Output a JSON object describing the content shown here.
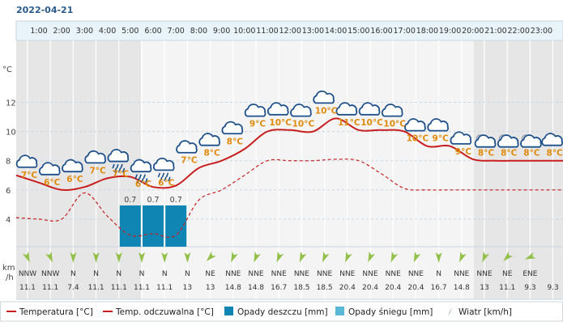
{
  "date_label": "2022-04-21",
  "y_axis_unit": "°C",
  "wind_axis_unit_line1": "km",
  "wind_axis_unit_line2": "/h",
  "legend": [
    {
      "label": "Temperatura [°C]",
      "kind": "line",
      "color": "#c81e1e"
    },
    {
      "label": "Temp. odczuwalna [°C]",
      "kind": "line",
      "color": "#c81e1e"
    },
    {
      "label": "Opady deszczu [mm]",
      "kind": "box",
      "color": "#0f85b4"
    },
    {
      "label": "Opady śniegu [mm]",
      "kind": "box",
      "color": "#58b8d6"
    },
    {
      "label": "Wiatr [km/h]",
      "kind": "arrow",
      "color": "#2a4a7a"
    }
  ],
  "colors": {
    "temperature": "#c81e1e",
    "feels_like": "#c81e1e",
    "rain": "#0f85b4",
    "snow": "#58b8d6",
    "temp_label": "#e08a0c",
    "night_band": "#e6e6e6",
    "day_band": "#f4f4f4",
    "grid": "#c9d6e3",
    "header_bg": "#e9f3fa",
    "wind_arrow": "#93c04a"
  },
  "chart_data": {
    "type": "line",
    "x": [
      "1:00",
      "2:00",
      "3:00",
      "4:00",
      "5:00",
      "6:00",
      "7:00",
      "8:00",
      "9:00",
      "10:00",
      "11:00",
      "12:00",
      "13:00",
      "14:00",
      "15:00",
      "16:00",
      "17:00",
      "18:00",
      "19:00",
      "20:00",
      "21:00",
      "22:00",
      "23:00"
    ],
    "y_ticks": [
      4,
      6,
      8,
      10,
      12
    ],
    "ylim": [
      2,
      14
    ],
    "series": [
      {
        "name": "Temperatura [°C]",
        "style": "solid",
        "values": [
          6.5,
          6.0,
          6.2,
          6.8,
          6.9,
          6.2,
          6.3,
          7.5,
          8.0,
          8.8,
          10.0,
          10.1,
          10.0,
          10.9,
          10.1,
          10.1,
          10.0,
          9.0,
          9.0,
          8.1,
          8.0,
          8.0,
          8.0
        ]
      },
      {
        "name": "Temp. odczuwalna [°C]",
        "style": "dashed",
        "values": [
          4.0,
          4.0,
          5.8,
          4.2,
          2.9,
          3.0,
          2.9,
          5.3,
          6.0,
          7.0,
          8.0,
          8.0,
          8.0,
          8.1,
          8.0,
          7.1,
          6.1,
          6.0,
          6.0,
          6.0,
          6.0,
          6.0,
          6.0
        ]
      },
      {
        "name": "Opady deszczu [mm]",
        "style": "bar",
        "values": [
          0,
          0,
          0,
          0,
          0.7,
          0.7,
          0.7,
          0,
          0,
          0,
          0,
          0,
          0,
          0,
          0,
          0,
          0,
          0,
          0,
          0,
          0,
          0,
          0
        ],
        "labels": [
          "",
          "",
          "",
          "",
          "0.7",
          "0.7",
          "0.7",
          "",
          "",
          "",
          "",
          "",
          "",
          "",
          "",
          "",
          "",
          "",
          "",
          "",
          "",
          "",
          ""
        ]
      }
    ],
    "temp_labels": [
      "7°C",
      "6°C",
      "6°C",
      "7°C",
      "7°C",
      "6°C",
      "6°C",
      "7°C",
      "8°C",
      "8°C",
      "9°C",
      "10°C",
      "10°C",
      "10°C",
      "11°C",
      "10°C",
      "10°C",
      "10°C",
      "9°C",
      "9°C",
      "8°C",
      "8°C",
      "8°C",
      "8°C"
    ],
    "weather_icons": [
      "cloud-icon",
      "cloud-icon",
      "cloud-icon",
      "cloud-icon",
      "rain-cloud-icon",
      "rain-cloud-icon",
      "rain-cloud-icon",
      "cloud-icon",
      "cloud-icon",
      "cloud-icon",
      "cloud-icon",
      "cloud-icon",
      "cloud-icon",
      "cloud-icon",
      "cloud-icon",
      "cloud-icon",
      "cloud-icon",
      "cloud-icon",
      "cloud-icon",
      "cloud-icon",
      "night-cloud-icon",
      "night-cloud-icon",
      "night-cloud-icon",
      "cloud-icon"
    ],
    "wind_dir": [
      "NNW",
      "NNW",
      "N",
      "N",
      "N",
      "N",
      "N",
      "N",
      "NE",
      "NNE",
      "NNE",
      "NNE",
      "NNE",
      "NNE",
      "NNE",
      "NNE",
      "NNE",
      "NNE",
      "N",
      "NNE",
      "NNE",
      "NE",
      "ENE"
    ],
    "wind_speed": [
      "11.1",
      "11.1",
      "7.4",
      "11.1",
      "11.1",
      "11.1",
      "11.1",
      "13",
      "13",
      "14.8",
      "14.8",
      "16.7",
      "18.5",
      "18.5",
      "20.4",
      "20.4",
      "20.4",
      "20.4",
      "16.7",
      "14.8",
      "13",
      "11.1",
      "9.3",
      "9.3"
    ],
    "wind_dir_deg": [
      337.5,
      337.5,
      0,
      0,
      0,
      0,
      0,
      0,
      45,
      22.5,
      22.5,
      22.5,
      22.5,
      22.5,
      22.5,
      22.5,
      22.5,
      22.5,
      0,
      22.5,
      22.5,
      45,
      67.5
    ]
  }
}
